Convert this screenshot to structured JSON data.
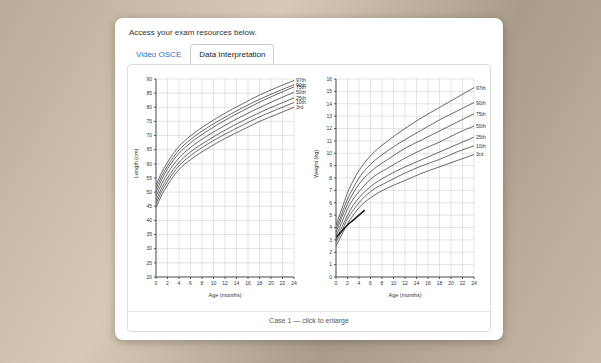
{
  "panel": {
    "intro": "Access your exam resources below.",
    "tabs": [
      "Video OSCE",
      "Data Interpretation"
    ],
    "active_tab": "Data Interpretation",
    "caption": "Case 1 — click to enlarge"
  },
  "chart_data": [
    {
      "type": "line",
      "x_label": "Age (months)",
      "y_label": "Length (cm)",
      "x": [
        0,
        1,
        2,
        3,
        4,
        6,
        9,
        12,
        15,
        18,
        21,
        24
      ],
      "xlim": [
        0,
        24
      ],
      "xticks": [
        0,
        2,
        4,
        6,
        8,
        10,
        12,
        14,
        16,
        18,
        20,
        22,
        24
      ],
      "ylim": [
        20,
        90
      ],
      "yticks": [
        20,
        25,
        30,
        35,
        40,
        45,
        50,
        55,
        60,
        65,
        70,
        75,
        80,
        85,
        90
      ],
      "grid": true,
      "series": [
        {
          "name": "97th",
          "color": "#444444",
          "values": [
            52.5,
            57,
            60.6,
            63.6,
            66.2,
            69.9,
            74.2,
            77.9,
            81.2,
            84.3,
            87,
            89.5
          ]
        },
        {
          "name": "90th",
          "color": "#444444",
          "values": [
            51.2,
            55.7,
            59.3,
            62.3,
            64.9,
            68.6,
            72.9,
            76.5,
            79.8,
            82.8,
            85.5,
            88
          ]
        },
        {
          "name": "75th",
          "color": "#444444",
          "values": [
            50,
            54.5,
            58.2,
            61.2,
            63.7,
            67.4,
            71.7,
            75.4,
            78.7,
            81.8,
            84.6,
            87.2
          ]
        },
        {
          "name": "50th",
          "color": "#444444",
          "values": [
            48.5,
            53,
            56.6,
            59.6,
            62.1,
            65.8,
            70,
            73.6,
            76.9,
            79.9,
            82.7,
            85.3
          ]
        },
        {
          "name": "25th",
          "color": "#444444",
          "values": [
            47,
            51.5,
            55,
            58,
            60.5,
            64.2,
            68.3,
            71.9,
            75.1,
            78.1,
            80.8,
            83.3
          ]
        },
        {
          "name": "10th",
          "color": "#444444",
          "values": [
            45.8,
            50.3,
            53.8,
            56.8,
            59.3,
            62.9,
            67,
            70.5,
            73.6,
            76.6,
            79.2,
            81.7
          ]
        },
        {
          "name": "3rd",
          "color": "#444444",
          "values": [
            44.5,
            49,
            52.5,
            55.5,
            58,
            61.5,
            65.5,
            69,
            72,
            75,
            77.5,
            80
          ]
        }
      ]
    },
    {
      "type": "line",
      "x_label": "Age (months)",
      "y_label": "Weight (kg)",
      "x": [
        0,
        1,
        2,
        3,
        4,
        6,
        9,
        12,
        15,
        18,
        21,
        24
      ],
      "xlim": [
        0,
        24
      ],
      "xticks": [
        0,
        2,
        4,
        6,
        8,
        10,
        12,
        14,
        16,
        18,
        20,
        22,
        24
      ],
      "ylim": [
        0,
        16
      ],
      "yticks": [
        0,
        1,
        2,
        3,
        4,
        5,
        6,
        7,
        8,
        9,
        10,
        11,
        12,
        13,
        14,
        15,
        16
      ],
      "grid": true,
      "series": [
        {
          "name": "97th",
          "color": "#444444",
          "values": [
            4.2,
            5.5,
            6.8,
            7.8,
            8.6,
            9.8,
            11,
            12,
            12.9,
            13.7,
            14.5,
            15.3
          ]
        },
        {
          "name": "90th",
          "color": "#444444",
          "values": [
            3.9,
            5.1,
            6.3,
            7.2,
            8,
            9.1,
            10.2,
            11.1,
            11.9,
            12.7,
            13.4,
            14.1
          ]
        },
        {
          "name": "75th",
          "color": "#444444",
          "values": [
            3.6,
            4.8,
            5.9,
            6.8,
            7.5,
            8.5,
            9.5,
            10.4,
            11.1,
            11.8,
            12.5,
            13.2
          ]
        },
        {
          "name": "50th",
          "color": "#444444",
          "values": [
            3.3,
            4.4,
            5.5,
            6.3,
            6.9,
            7.9,
            8.8,
            9.6,
            10.3,
            10.9,
            11.6,
            12.2
          ]
        },
        {
          "name": "25th",
          "color": "#444444",
          "values": [
            3,
            4,
            5,
            5.8,
            6.4,
            7.3,
            8.2,
            8.9,
            9.5,
            10.1,
            10.7,
            11.3
          ]
        },
        {
          "name": "10th",
          "color": "#444444",
          "values": [
            2.8,
            3.7,
            4.7,
            5.4,
            6,
            6.9,
            7.7,
            8.4,
            9,
            9.5,
            10.1,
            10.6
          ]
        },
        {
          "name": "3rd",
          "color": "#444444",
          "values": [
            2.5,
            3.4,
            4.3,
            5,
            5.6,
            6.4,
            7.2,
            7.8,
            8.4,
            8.9,
            9.4,
            9.9
          ]
        },
        {
          "color": "#1a1a1a",
          "x": [
            0,
            1,
            2,
            3,
            4,
            5
          ],
          "values": [
            3.2,
            3.7,
            4.2,
            4.6,
            5,
            5.4
          ]
        }
      ]
    }
  ]
}
